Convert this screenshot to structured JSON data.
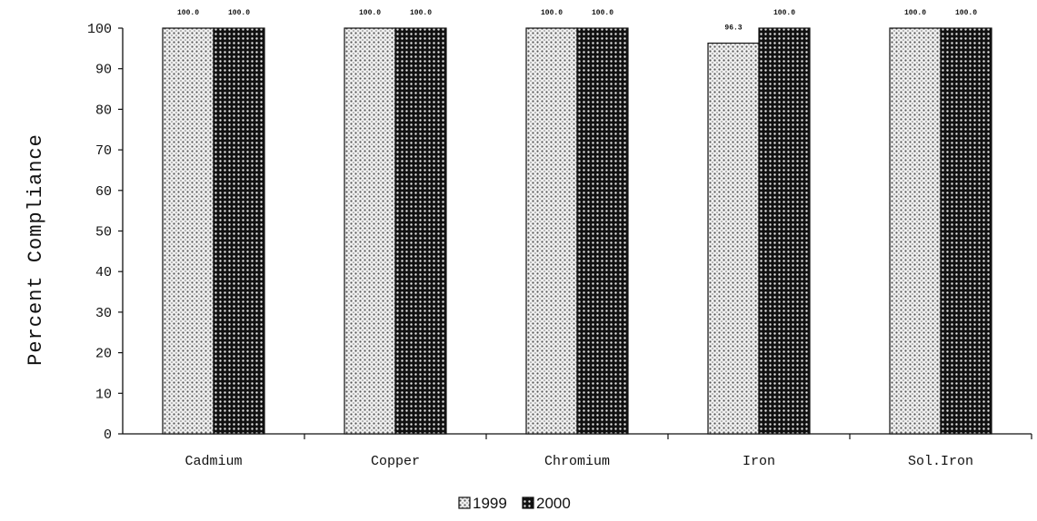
{
  "chart_data": {
    "type": "bar",
    "title": "",
    "xlabel": "",
    "ylabel": "Percent Compliance",
    "ylim": [
      0,
      100
    ],
    "yticks": [
      0,
      10,
      20,
      30,
      40,
      50,
      60,
      70,
      80,
      90,
      100
    ],
    "categories": [
      "Cadmium",
      "Copper",
      "Chromium",
      "Iron",
      "Sol.Iron"
    ],
    "series": [
      {
        "name": "1999",
        "values": [
          100.0,
          100.0,
          100.0,
          96.3,
          100.0
        ],
        "labels": [
          "100.0",
          "100.0",
          "100.0",
          "96.3",
          "100.0"
        ],
        "color": "#bdbdbd"
      },
      {
        "name": "2000",
        "values": [
          100.0,
          100.0,
          100.0,
          100.0,
          100.0
        ],
        "labels": [
          "100.0",
          "100.0",
          "100.0",
          "100.0",
          "100.0"
        ],
        "color": "#1a1a1a"
      }
    ],
    "grid": false,
    "legend_position": "bottom-center"
  }
}
